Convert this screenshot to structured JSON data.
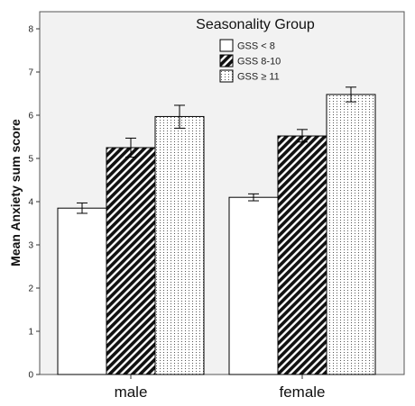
{
  "chart_data": {
    "type": "bar",
    "ylabel": "Mean Anxiety sum score",
    "ylim": [
      0,
      8
    ],
    "yticks": [
      0,
      1,
      2,
      3,
      4,
      5,
      6,
      7,
      8
    ],
    "categories": [
      "male",
      "female"
    ],
    "legend": {
      "title": "Seasonality Group",
      "placement": "top-center"
    },
    "series": [
      {
        "name": "GSS < 8",
        "pattern": "plain",
        "values": [
          3.85,
          4.1
        ],
        "err_low": [
          3.73,
          4.02
        ],
        "err_high": [
          3.97,
          4.18
        ]
      },
      {
        "name": "GSS 8-10",
        "pattern": "diagonal-hatch",
        "values": [
          5.25,
          5.52
        ],
        "err_low": [
          5.03,
          5.38
        ],
        "err_high": [
          5.47,
          5.67
        ]
      },
      {
        "name": "GSS ≥ 11",
        "pattern": "dotted",
        "values": [
          5.97,
          6.48
        ],
        "err_low": [
          5.7,
          6.31
        ],
        "err_high": [
          6.23,
          6.65
        ]
      }
    ],
    "grid": false,
    "colors": {
      "bar_stroke": "#000000",
      "hatch": "#111111",
      "dots": "#555555",
      "plot_bg": "#f2f2f2"
    }
  }
}
